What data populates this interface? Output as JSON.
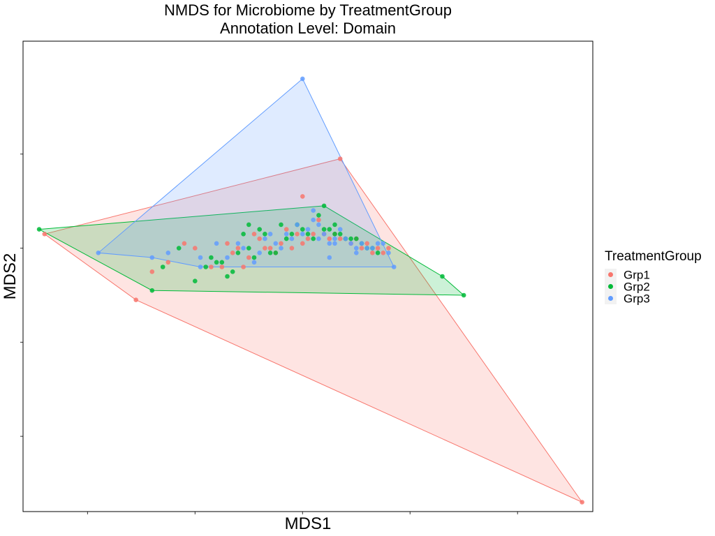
{
  "chart_data": {
    "type": "scatter",
    "title": "NMDS for Microbiome by TreatmentGroup",
    "subtitle": "Annotation Level: Domain",
    "xlabel": "MDS1",
    "ylabel": "MDS2",
    "xlim": [
      -0.52,
      0.54
    ],
    "ylim": [
      -0.56,
      0.44
    ],
    "grid": false,
    "legend": {
      "title": "TreatmentGroup",
      "position": "right"
    },
    "colors": {
      "Grp1": "#F8766D",
      "Grp2": "#00BA38",
      "Grp3": "#619CFF"
    },
    "hulls": [
      {
        "group": "Grp1",
        "points": [
          [
            -0.48,
            0.03
          ],
          [
            0.07,
            0.19
          ],
          [
            0.52,
            -0.54
          ],
          [
            -0.31,
            -0.11
          ]
        ]
      },
      {
        "group": "Grp2",
        "points": [
          [
            -0.49,
            0.04
          ],
          [
            0.04,
            0.09
          ],
          [
            0.26,
            -0.06
          ],
          [
            0.3,
            -0.1
          ],
          [
            -0.28,
            -0.09
          ]
        ]
      },
      {
        "group": "Grp3",
        "points": [
          [
            0.0,
            0.36
          ],
          [
            0.17,
            -0.04
          ],
          [
            -0.19,
            -0.04
          ],
          [
            -0.28,
            -0.02
          ],
          [
            -0.38,
            -0.01
          ]
        ]
      }
    ],
    "series": [
      {
        "name": "Grp1",
        "points": [
          [
            -0.48,
            0.03
          ],
          [
            0.07,
            0.19
          ],
          [
            0.52,
            -0.54
          ],
          [
            -0.31,
            -0.11
          ],
          [
            -0.28,
            -0.05
          ],
          [
            -0.25,
            -0.03
          ],
          [
            -0.22,
            0.01
          ],
          [
            -0.2,
            0.0
          ],
          [
            -0.15,
            -0.04
          ],
          [
            -0.14,
            0.01
          ],
          [
            -0.12,
            0.0
          ],
          [
            -0.1,
            -0.02
          ],
          [
            -0.08,
            0.02
          ],
          [
            -0.06,
            0.0
          ],
          [
            -0.05,
            -0.01
          ],
          [
            -0.03,
            0.04
          ],
          [
            -0.02,
            0.0
          ],
          [
            0.0,
            0.01
          ],
          [
            0.02,
            0.03
          ],
          [
            0.0,
            0.11
          ],
          [
            0.03,
            0.06
          ],
          [
            0.05,
            0.02
          ],
          [
            0.06,
            0.03
          ],
          [
            0.07,
            0.02
          ],
          [
            0.09,
            0.01
          ],
          [
            0.1,
            0.02
          ],
          [
            0.12,
            0.01
          ],
          [
            0.13,
            -0.01
          ],
          [
            0.14,
            0.0
          ],
          [
            0.15,
            -0.01
          ],
          [
            -0.17,
            -0.04
          ],
          [
            -0.11,
            -0.04
          ],
          [
            0.11,
            0.0
          ],
          [
            -0.09,
            0.03
          ],
          [
            -0.04,
            0.01
          ],
          [
            0.01,
            0.02
          ],
          [
            0.04,
            0.03
          ],
          [
            0.08,
            0.02
          ],
          [
            -0.01,
            0.03
          ],
          [
            0.16,
            0.0
          ],
          [
            -0.13,
            -0.01
          ],
          [
            -0.07,
            0.0
          ]
        ]
      },
      {
        "name": "Grp2",
        "points": [
          [
            -0.49,
            0.04
          ],
          [
            0.04,
            0.09
          ],
          [
            0.26,
            -0.06
          ],
          [
            0.3,
            -0.1
          ],
          [
            -0.28,
            -0.09
          ],
          [
            -0.26,
            -0.04
          ],
          [
            -0.23,
            0.0
          ],
          [
            -0.2,
            -0.07
          ],
          [
            -0.17,
            -0.02
          ],
          [
            -0.15,
            -0.03
          ],
          [
            -0.13,
            -0.05
          ],
          [
            -0.12,
            -0.01
          ],
          [
            -0.11,
            0.03
          ],
          [
            -0.09,
            -0.02
          ],
          [
            -0.07,
            0.03
          ],
          [
            -0.06,
            -0.01
          ],
          [
            -0.04,
            0.05
          ],
          [
            -0.03,
            0.02
          ],
          [
            -0.01,
            0.05
          ],
          [
            0.01,
            0.03
          ],
          [
            0.02,
            0.02
          ],
          [
            0.03,
            0.07
          ],
          [
            0.04,
            0.04
          ],
          [
            0.06,
            0.05
          ],
          [
            0.07,
            0.03
          ],
          [
            0.09,
            0.02
          ],
          [
            0.11,
            0.01
          ],
          [
            0.13,
            0.0
          ],
          [
            -0.18,
            -0.04
          ],
          [
            -0.1,
            0.0
          ],
          [
            -0.05,
            -0.01
          ],
          [
            0.0,
            0.04
          ],
          [
            0.05,
            0.04
          ],
          [
            0.08,
            0.02
          ],
          [
            0.1,
            0.02
          ],
          [
            -0.14,
            -0.06
          ],
          [
            -0.02,
            0.03
          ],
          [
            0.12,
            0.0
          ],
          [
            -0.08,
            0.04
          ],
          [
            -0.16,
            -0.03
          ],
          [
            0.14,
            -0.01
          ],
          [
            0.06,
            0.03
          ],
          [
            -0.1,
            0.05
          ]
        ]
      },
      {
        "name": "Grp3",
        "points": [
          [
            0.0,
            0.36
          ],
          [
            0.17,
            -0.04
          ],
          [
            -0.19,
            -0.04
          ],
          [
            -0.28,
            -0.02
          ],
          [
            -0.38,
            -0.01
          ],
          [
            -0.25,
            -0.01
          ],
          [
            -0.19,
            -0.02
          ],
          [
            -0.16,
            0.01
          ],
          [
            -0.14,
            -0.02
          ],
          [
            -0.11,
            0.0
          ],
          [
            -0.08,
            -0.01
          ],
          [
            -0.06,
            0.03
          ],
          [
            -0.04,
            0.0
          ],
          [
            -0.02,
            0.02
          ],
          [
            -0.01,
            0.05
          ],
          [
            0.01,
            0.04
          ],
          [
            0.02,
            0.08
          ],
          [
            0.03,
            0.02
          ],
          [
            0.04,
            0.03
          ],
          [
            0.05,
            0.01
          ],
          [
            0.06,
            0.01
          ],
          [
            0.08,
            0.02
          ],
          [
            0.1,
            0.0
          ],
          [
            0.12,
            0.0
          ],
          [
            0.14,
            0.01
          ],
          [
            0.07,
            0.04
          ],
          [
            0.09,
            0.01
          ],
          [
            0.11,
            0.01
          ],
          [
            -0.03,
            0.03
          ],
          [
            0.0,
            0.03
          ],
          [
            0.03,
            0.05
          ],
          [
            0.06,
            0.02
          ],
          [
            0.13,
            0.0
          ],
          [
            -0.12,
            0.01
          ],
          [
            -0.05,
            0.01
          ],
          [
            0.15,
            0.01
          ],
          [
            0.05,
            -0.02
          ],
          [
            -0.09,
            -0.03
          ],
          [
            0.1,
            -0.01
          ],
          [
            0.16,
            -0.01
          ],
          [
            0.02,
            0.06
          ],
          [
            -0.07,
            0.02
          ]
        ]
      }
    ]
  }
}
